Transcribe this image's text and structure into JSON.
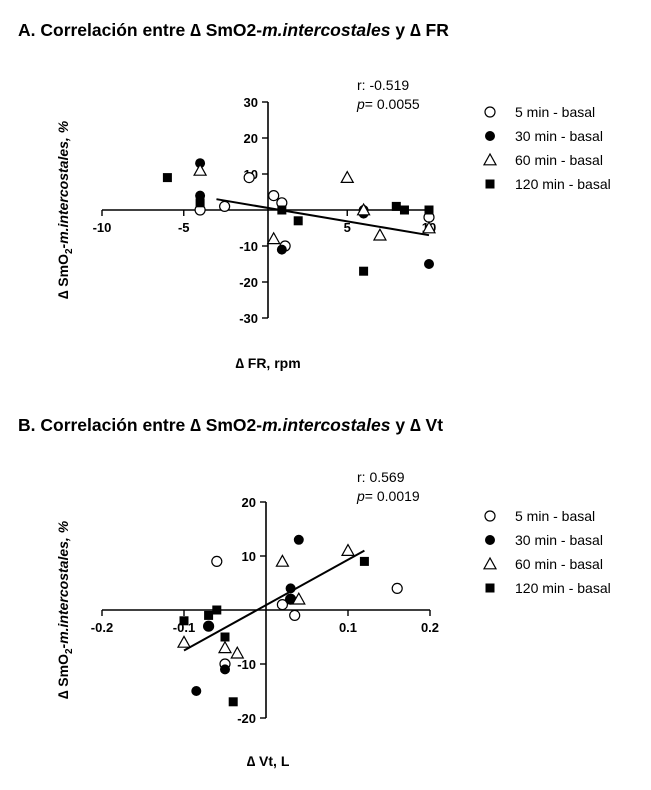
{
  "chart_data": [
    {
      "type": "scatter",
      "title_prefix": "A. Correlación entre ∆ SmO2-",
      "title_italic": "m.intercostales",
      "title_suffix": " y ∆ FR",
      "xlabel": "∆ FR, rpm",
      "ylabel_prefix": "∆ SmO",
      "ylabel_sub": "2",
      "ylabel_suffix": "-m.intercostales, %",
      "xlim": [
        -10,
        10
      ],
      "ylim": [
        -30,
        30
      ],
      "xticks": [
        -10,
        -5,
        5,
        10
      ],
      "yticks": [
        30,
        20,
        10,
        -10,
        -20,
        -30
      ],
      "x_tick_labels": [
        "-10",
        "-5",
        "5",
        "10"
      ],
      "y_tick_labels": [
        "30",
        "20",
        "10",
        "-10",
        "-20",
        "-30"
      ],
      "stat_r": "r: -0.519",
      "stat_p_symbol": "p",
      "stat_p_value": "= 0.0055",
      "legend_position": "right",
      "regression": {
        "x": [
          -3,
          10
        ],
        "y": [
          3,
          -7
        ]
      },
      "series": [
        {
          "name": "5 min - basal",
          "marker": "open-circle",
          "points": [
            [
              -4,
              0
            ],
            [
              -2.5,
              1
            ],
            [
              -1,
              9
            ],
            [
              0.5,
              4
            ],
            [
              1,
              2
            ],
            [
              1.2,
              -10
            ],
            [
              10,
              -2
            ]
          ]
        },
        {
          "name": "30 min - basal",
          "marker": "filled-circle",
          "points": [
            [
              -4,
              13
            ],
            [
              -4,
              4
            ],
            [
              1,
              -11
            ],
            [
              6,
              0
            ],
            [
              6,
              -1
            ],
            [
              10,
              -15
            ]
          ]
        },
        {
          "name": "60 min - basal",
          "marker": "open-triangle",
          "points": [
            [
              -4,
              11
            ],
            [
              0.5,
              -8
            ],
            [
              5,
              9
            ],
            [
              6,
              0
            ],
            [
              7,
              -7
            ],
            [
              10,
              -5
            ]
          ]
        },
        {
          "name": "120 min - basal",
          "marker": "filled-square",
          "points": [
            [
              -6,
              9
            ],
            [
              -4,
              2
            ],
            [
              1,
              0
            ],
            [
              2,
              -3
            ],
            [
              6,
              -17
            ],
            [
              8,
              1
            ],
            [
              8.5,
              0
            ],
            [
              10,
              0
            ]
          ]
        }
      ]
    },
    {
      "type": "scatter",
      "title_prefix": "B. Correlación entre ∆ SmO2-",
      "title_italic": "m.intercostales",
      "title_suffix": " y ∆ Vt",
      "xlabel": "∆ Vt, L",
      "ylabel_prefix": "∆ SmO",
      "ylabel_sub": "2",
      "ylabel_suffix": "-m.intercostales, %",
      "xlim": [
        -0.2,
        0.2
      ],
      "ylim": [
        -20,
        20
      ],
      "xticks": [
        -0.2,
        -0.1,
        0.1,
        0.2
      ],
      "yticks": [
        20,
        10,
        -10,
        -20
      ],
      "x_tick_labels": [
        "-0.2",
        "-0.1",
        "0.1",
        "0.2"
      ],
      "y_tick_labels": [
        "20",
        "10",
        "-10",
        "-20"
      ],
      "stat_r": "r: 0.569",
      "stat_p_symbol": "p",
      "stat_p_value": "= 0.0019",
      "legend_position": "right",
      "regression": {
        "x": [
          -0.1,
          0.12
        ],
        "y": [
          -7.5,
          11
        ]
      },
      "series": [
        {
          "name": "5 min - basal",
          "marker": "open-circle",
          "points": [
            [
              -0.07,
              -3
            ],
            [
              -0.06,
              9
            ],
            [
              -0.05,
              -10
            ],
            [
              0.02,
              1
            ],
            [
              0.03,
              2
            ],
            [
              0.035,
              -1
            ],
            [
              0.16,
              4
            ]
          ]
        },
        {
          "name": "30 min - basal",
          "marker": "filled-circle",
          "points": [
            [
              -0.085,
              -15
            ],
            [
              -0.07,
              -3
            ],
            [
              -0.05,
              -11
            ],
            [
              0.03,
              4
            ],
            [
              0.03,
              2
            ],
            [
              0.04,
              13
            ]
          ]
        },
        {
          "name": "60 min - basal",
          "marker": "open-triangle",
          "points": [
            [
              -0.1,
              -6
            ],
            [
              -0.05,
              -7
            ],
            [
              -0.035,
              -8
            ],
            [
              0.02,
              9
            ],
            [
              0.04,
              2
            ],
            [
              0.1,
              11
            ]
          ]
        },
        {
          "name": "120 min - basal",
          "marker": "filled-square",
          "points": [
            [
              -0.1,
              -2
            ],
            [
              -0.07,
              -1
            ],
            [
              -0.06,
              0
            ],
            [
              -0.05,
              -5
            ],
            [
              -0.04,
              -17
            ],
            [
              0.12,
              9
            ]
          ]
        }
      ]
    }
  ]
}
